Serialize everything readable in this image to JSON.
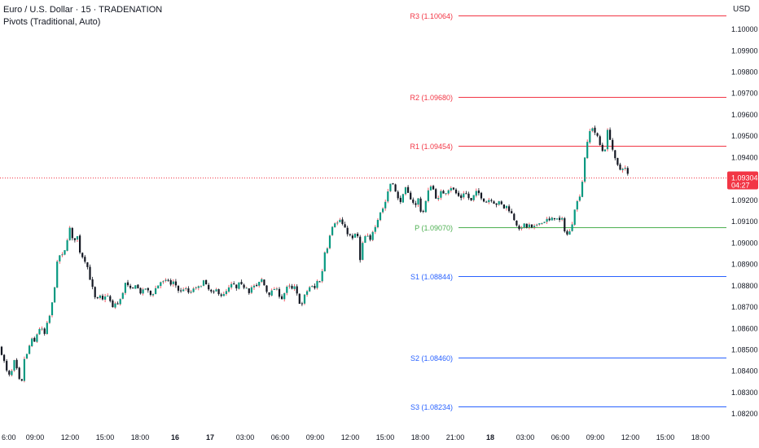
{
  "header": {
    "symbol_title": "Euro / U.S. Dollar · 15 · TRADENATION",
    "indicator": "Pivots (Traditional, Auto)",
    "currency": "USD"
  },
  "colors": {
    "up": "#089981",
    "down": "#131722",
    "wick_up": "#f23645",
    "resistance": "#f23645",
    "pivot": "#4caf50",
    "support": "#2962ff",
    "last_price_bg": "#f23645",
    "price_line": "#f23645"
  },
  "chart_data": {
    "type": "candlestick",
    "timeframe": "15",
    "price_axis": {
      "range": [
        1.08195,
        1.10105
      ],
      "ticks": [
        "1.10000",
        "1.09900",
        "1.09800",
        "1.09700",
        "1.09600",
        "1.09500",
        "1.09400",
        "1.09200",
        "1.09100",
        "1.09000",
        "1.08900",
        "1.08800",
        "1.08700",
        "1.08600",
        "1.08500",
        "1.08400",
        "1.08300",
        "1.08200"
      ]
    },
    "time_axis": {
      "ticks": [
        "6:00",
        "09:00",
        "12:00",
        "15:00",
        "18:00",
        "16",
        "17",
        "03:00",
        "06:00",
        "09:00",
        "12:00",
        "15:00",
        "18:00",
        "21:00",
        "18",
        "03:00",
        "06:00",
        "09:00",
        "12:00",
        "15:00",
        "18:00"
      ],
      "bold_ticks": [
        "16",
        "17",
        "18"
      ]
    },
    "pivots": [
      {
        "label": "R3 (1.10064)",
        "value": 1.10064,
        "kind": "resistance"
      },
      {
        "label": "R2 (1.09680)",
        "value": 1.0968,
        "kind": "resistance"
      },
      {
        "label": "R1 (1.09454)",
        "value": 1.09454,
        "kind": "resistance"
      },
      {
        "label": "P (1.09070)",
        "value": 1.0907,
        "kind": "pivot"
      },
      {
        "label": "S1 (1.08844)",
        "value": 1.08844,
        "kind": "support"
      },
      {
        "label": "S2 (1.08460)",
        "value": 1.0846,
        "kind": "support"
      },
      {
        "label": "S3 (1.08234)",
        "value": 1.08234,
        "kind": "support"
      }
    ],
    "last_price": {
      "value": "1.09304",
      "countdown": "04:27",
      "price": 1.09304
    },
    "close_path": [
      [
        0,
        1.0851
      ],
      [
        6,
        1.0843
      ],
      [
        10,
        1.0837
      ],
      [
        14,
        1.0839
      ],
      [
        18,
        1.0845
      ],
      [
        22,
        1.0838
      ],
      [
        26,
        1.0832
      ],
      [
        30,
        1.0846
      ],
      [
        34,
        1.0848
      ],
      [
        38,
        1.0855
      ],
      [
        42,
        1.0853
      ],
      [
        46,
        1.0858
      ],
      [
        50,
        1.0861
      ],
      [
        54,
        1.0856
      ],
      [
        58,
        1.0862
      ],
      [
        62,
        1.0867
      ],
      [
        66,
        1.0876
      ],
      [
        70,
        1.089
      ],
      [
        74,
        1.0895
      ],
      [
        78,
        1.0893
      ],
      [
        82,
        1.0901
      ],
      [
        86,
        1.0907
      ],
      [
        90,
        1.0899
      ],
      [
        94,
        1.0905
      ],
      [
        98,
        1.0896
      ],
      [
        102,
        1.0893
      ],
      [
        106,
        1.0891
      ],
      [
        110,
        1.0884
      ],
      [
        114,
        1.0878
      ],
      [
        118,
        1.0872
      ],
      [
        122,
        1.0875
      ],
      [
        126,
        1.0873
      ],
      [
        130,
        1.0876
      ],
      [
        134,
        1.0874
      ],
      [
        138,
        1.0869
      ],
      [
        142,
        1.0872
      ],
      [
        146,
        1.0871
      ],
      [
        150,
        1.0876
      ],
      [
        154,
        1.0881
      ],
      [
        158,
        1.0879
      ],
      [
        162,
        1.0877
      ],
      [
        166,
        1.0881
      ],
      [
        170,
        1.0878
      ],
      [
        174,
        1.0876
      ],
      [
        178,
        1.0879
      ],
      [
        182,
        1.0877
      ],
      [
        186,
        1.0875
      ],
      [
        190,
        1.0878
      ],
      [
        194,
        1.088
      ],
      [
        198,
        1.0882
      ],
      [
        202,
        1.0881
      ],
      [
        206,
        1.0883
      ],
      [
        210,
        1.088
      ],
      [
        214,
        1.0882
      ],
      [
        218,
        1.0878
      ],
      [
        222,
        1.0877
      ],
      [
        226,
        1.0879
      ],
      [
        230,
        1.0877
      ],
      [
        234,
        1.0876
      ],
      [
        238,
        1.0879
      ],
      [
        242,
        1.0878
      ],
      [
        246,
        1.088
      ],
      [
        250,
        1.0882
      ],
      [
        254,
        1.0879
      ],
      [
        258,
        1.0877
      ],
      [
        262,
        1.0876
      ],
      [
        266,
        1.0878
      ],
      [
        270,
        1.0876
      ],
      [
        274,
        1.0875
      ],
      [
        278,
        1.0877
      ],
      [
        282,
        1.0879
      ],
      [
        286,
        1.0881
      ],
      [
        290,
        1.0878
      ],
      [
        294,
        1.0881
      ],
      [
        298,
        1.0879
      ],
      [
        302,
        1.088
      ],
      [
        306,
        1.0877
      ],
      [
        310,
        1.088
      ],
      [
        314,
        1.0879
      ],
      [
        318,
        1.0881
      ],
      [
        322,
        1.0883
      ],
      [
        326,
        1.0878
      ],
      [
        330,
        1.0876
      ],
      [
        334,
        1.0877
      ],
      [
        338,
        1.0879
      ],
      [
        342,
        1.0876
      ],
      [
        346,
        1.0874
      ],
      [
        350,
        1.0877
      ],
      [
        354,
        1.088
      ],
      [
        358,
        1.0878
      ],
      [
        362,
        1.0879
      ],
      [
        366,
        1.0874
      ],
      [
        370,
        1.087
      ],
      [
        374,
        1.0875
      ],
      [
        378,
        1.0878
      ],
      [
        382,
        1.088
      ],
      [
        386,
        1.0878
      ],
      [
        390,
        1.0883
      ],
      [
        394,
        1.0881
      ],
      [
        398,
        1.0895
      ],
      [
        402,
        1.0898
      ],
      [
        406,
        1.0906
      ],
      [
        410,
        1.091
      ],
      [
        414,
        1.0909
      ],
      [
        418,
        1.0911
      ],
      [
        422,
        1.0907
      ],
      [
        426,
        1.0905
      ],
      [
        430,
        1.0903
      ],
      [
        434,
        1.0901
      ],
      [
        438,
        1.0907
      ],
      [
        442,
        1.0891
      ],
      [
        446,
        1.0901
      ],
      [
        450,
        1.0904
      ],
      [
        454,
        1.09
      ],
      [
        458,
        1.0906
      ],
      [
        462,
        1.0909
      ],
      [
        466,
        1.0914
      ],
      [
        470,
        1.0916
      ],
      [
        474,
        1.092
      ],
      [
        478,
        1.0927
      ],
      [
        482,
        1.0929
      ],
      [
        486,
        1.0923
      ],
      [
        490,
        1.0919
      ],
      [
        494,
        1.0921
      ],
      [
        498,
        1.0925
      ],
      [
        502,
        1.0922
      ],
      [
        506,
        1.092
      ],
      [
        510,
        1.0917
      ],
      [
        514,
        1.0921
      ],
      [
        518,
        1.0912
      ],
      [
        522,
        1.0918
      ],
      [
        526,
        1.0924
      ],
      [
        530,
        1.0928
      ],
      [
        534,
        1.0922
      ],
      [
        538,
        1.092
      ],
      [
        542,
        1.0924
      ],
      [
        546,
        1.0923
      ],
      [
        550,
        1.0925
      ],
      [
        554,
        1.0926
      ],
      [
        558,
        1.0924
      ],
      [
        562,
        1.0922
      ],
      [
        566,
        1.0921
      ],
      [
        570,
        1.0924
      ],
      [
        574,
        1.0922
      ],
      [
        578,
        1.0919
      ],
      [
        582,
        1.0922
      ],
      [
        586,
        1.0924
      ],
      [
        590,
        1.0922
      ],
      [
        594,
        1.092
      ],
      [
        598,
        1.0919
      ],
      [
        602,
        1.0921
      ],
      [
        606,
        1.0919
      ],
      [
        610,
        1.0918
      ],
      [
        614,
        1.0919
      ],
      [
        618,
        1.0916
      ],
      [
        622,
        1.0917
      ],
      [
        626,
        1.0915
      ],
      [
        630,
        1.0912
      ],
      [
        634,
        1.0909
      ],
      [
        638,
        1.0905
      ],
      [
        642,
        1.0909
      ],
      [
        646,
        1.0907
      ],
      [
        650,
        1.0908
      ],
      [
        654,
        1.0906
      ],
      [
        658,
        1.0908
      ],
      [
        662,
        1.091
      ],
      [
        666,
        1.0909
      ],
      [
        670,
        1.0911
      ],
      [
        674,
        1.091
      ],
      [
        678,
        1.0911
      ],
      [
        682,
        1.0912
      ],
      [
        686,
        1.091
      ],
      [
        690,
        1.0911
      ],
      [
        694,
        1.0905
      ],
      [
        698,
        1.0903
      ],
      [
        702,
        1.0908
      ],
      [
        706,
        1.0917
      ],
      [
        710,
        1.092
      ],
      [
        714,
        1.0925
      ],
      [
        718,
        1.094
      ],
      [
        722,
        1.0948
      ],
      [
        726,
        1.0955
      ],
      [
        730,
        1.0952
      ],
      [
        734,
        1.0949
      ],
      [
        738,
        1.0944
      ],
      [
        742,
        1.0942
      ],
      [
        746,
        1.0952
      ],
      [
        750,
        1.0948
      ],
      [
        754,
        1.094
      ],
      [
        758,
        1.0936
      ],
      [
        762,
        1.0934
      ],
      [
        766,
        1.0936
      ],
      [
        770,
        1.0933
      ],
      [
        772,
        1.093
      ]
    ]
  }
}
